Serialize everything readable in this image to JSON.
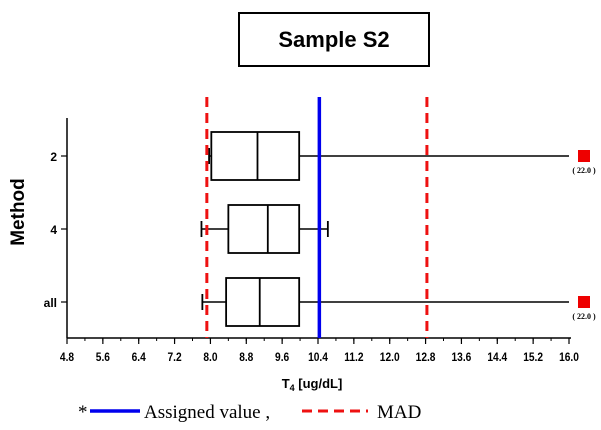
{
  "chart_data": {
    "type": "boxplot",
    "title": "Sample S2",
    "xlabel_main": "T",
    "xlabel_sub": "4",
    "xlabel_unit": " [ug/dL]",
    "ylabel": "Method",
    "xlim": [
      4.8,
      16.0
    ],
    "xticks": [
      "4.8",
      "5.6",
      "6.4",
      "7.2",
      "8.0",
      "8.8",
      "9.6",
      "10.4",
      "11.2",
      "12.0",
      "12.8",
      "13.6",
      "14.4",
      "15.2",
      "16.0"
    ],
    "categories": [
      "2",
      "4",
      "all"
    ],
    "boxes": [
      {
        "label": "2",
        "whisker_low": 7.97,
        "q1": 8.02,
        "median": 9.05,
        "q3": 9.98,
        "whisker_high": 12.8,
        "whisker_high_extends": true,
        "outlier_value": 22.0,
        "outlier_label": "( 22.0 )"
      },
      {
        "label": "4",
        "whisker_low": 7.8,
        "q1": 8.4,
        "median": 9.28,
        "q3": 9.98,
        "whisker_high": 10.62,
        "whisker_high_extends": false,
        "outlier_value": null,
        "outlier_label": ""
      },
      {
        "label": "all",
        "whisker_low": 7.82,
        "q1": 8.35,
        "median": 9.1,
        "q3": 9.98,
        "whisker_high": 12.8,
        "whisker_high_extends": true,
        "outlier_value": 22.0,
        "outlier_label": "( 22.0 )"
      }
    ],
    "assigned_value": 10.43,
    "mad_lines": [
      7.92,
      12.83
    ],
    "colors": {
      "assigned": "#0000ee",
      "mad": "#ee1111",
      "outlier": "#ee0000",
      "box": "#000000"
    },
    "legend": {
      "prefix": "*",
      "assigned_label": "Assigned value ,",
      "mad_label": "MAD"
    }
  }
}
